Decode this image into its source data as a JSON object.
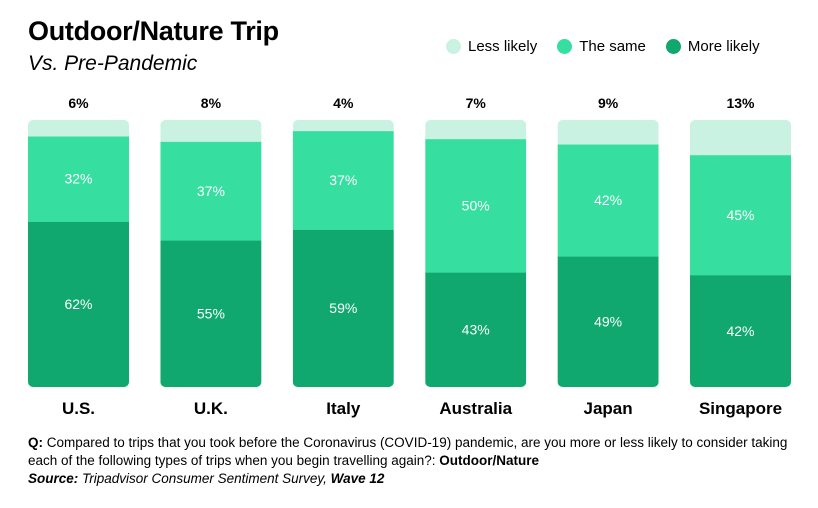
{
  "header": {
    "title": "Outdoor/Nature Trip",
    "subtitle": "Vs. Pre-Pandemic"
  },
  "legend": [
    {
      "label": "Less likely",
      "color": "#c9f2e2"
    },
    {
      "label": "The same",
      "color": "#36dea0"
    },
    {
      "label": "More likely",
      "color": "#10a86f"
    }
  ],
  "chart_data": {
    "type": "bar",
    "stacked": true,
    "categories": [
      "U.S.",
      "U.K.",
      "Italy",
      "Australia",
      "Japan",
      "Singapore"
    ],
    "series": [
      {
        "name": "More likely",
        "values": [
          62,
          55,
          59,
          43,
          49,
          42
        ],
        "color": "#10a86f"
      },
      {
        "name": "The same",
        "values": [
          32,
          37,
          37,
          50,
          42,
          45
        ],
        "color": "#36dea0"
      },
      {
        "name": "Less likely",
        "values": [
          6,
          8,
          4,
          7,
          9,
          13
        ],
        "color": "#c9f2e2"
      }
    ],
    "ylim": [
      0,
      100
    ],
    "grid": false,
    "legend_position": "top-right"
  },
  "footnote": {
    "q_label": "Q:",
    "question": "Compared to trips that you took before the Coronavirus (COVID-19) pandemic, are you more or less likely to consider taking each of the following types of trips when you begin travelling again?:",
    "question_topic": "Outdoor/Nature",
    "source_label": "Source:",
    "source_text": "Tripadvisor Consumer Sentiment Survey,",
    "source_wave": "Wave 12"
  }
}
